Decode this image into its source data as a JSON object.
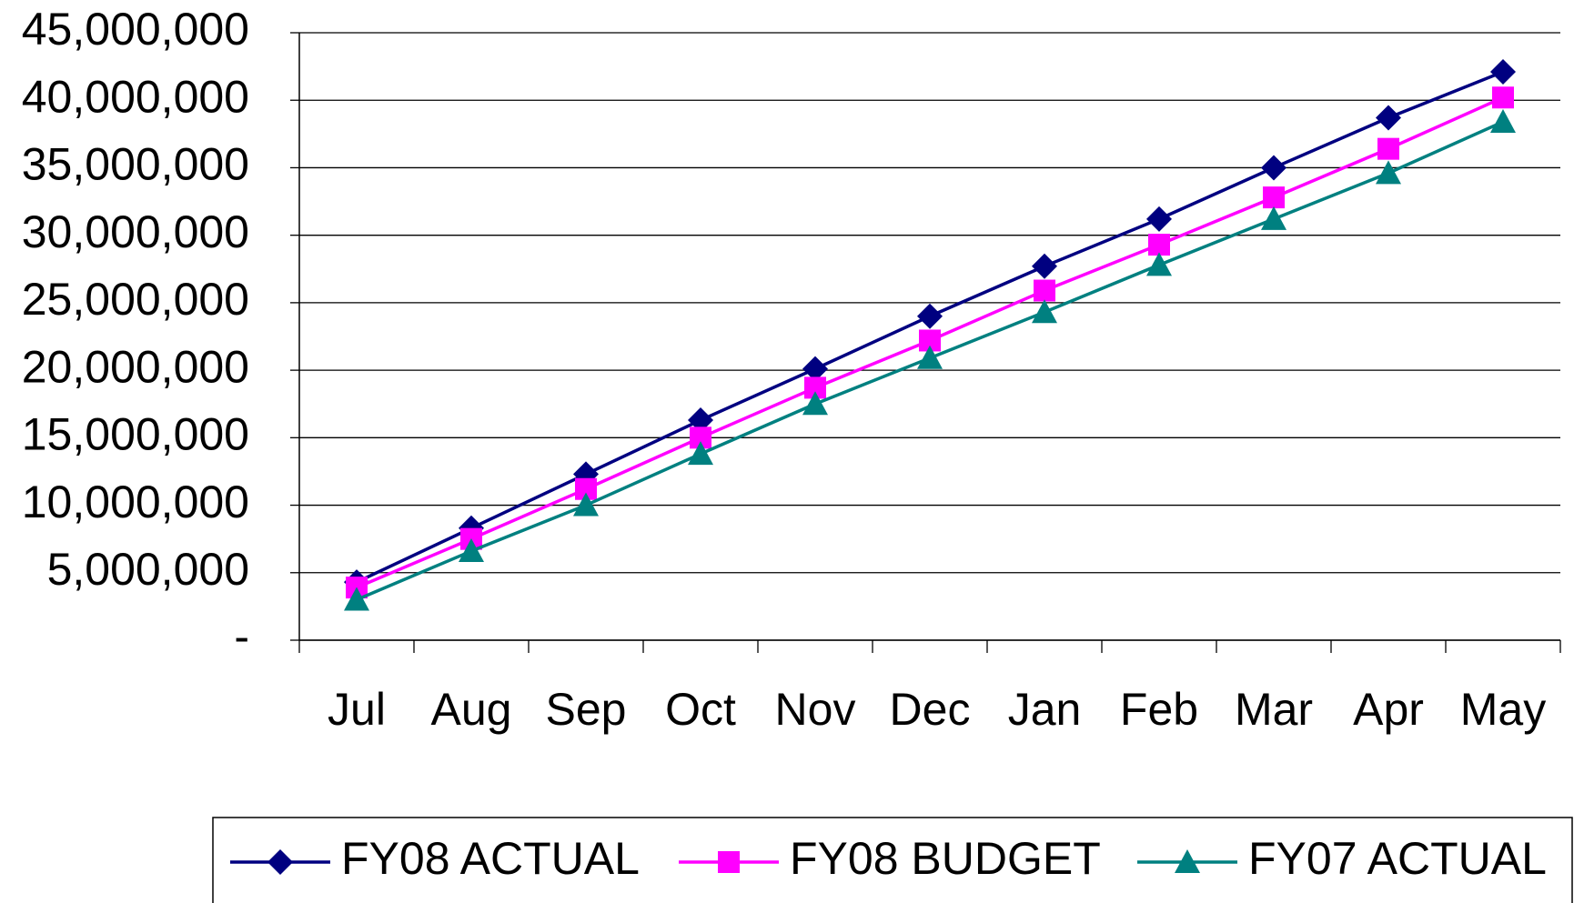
{
  "chart_data": {
    "type": "line",
    "categories": [
      "Jul",
      "Aug",
      "Sep",
      "Oct",
      "Nov",
      "Dec",
      "Jan",
      "Feb",
      "Mar",
      "Apr",
      "May"
    ],
    "series": [
      {
        "name": "FY08 ACTUAL",
        "color": "#000080",
        "marker": "diamond",
        "values": [
          4300000,
          8300000,
          12300000,
          16300000,
          20100000,
          24000000,
          27700000,
          31200000,
          35000000,
          38700000,
          42100000
        ]
      },
      {
        "name": "FY08 BUDGET",
        "color": "#ff00ff",
        "marker": "square",
        "values": [
          3900000,
          7500000,
          11200000,
          15000000,
          18700000,
          22200000,
          25900000,
          29300000,
          32800000,
          36400000,
          40200000
        ]
      },
      {
        "name": "FY07 ACTUAL",
        "color": "#008080",
        "marker": "triangle",
        "values": [
          3000000,
          6600000,
          10000000,
          13800000,
          17500000,
          20900000,
          24300000,
          27800000,
          31200000,
          34600000,
          38400000
        ]
      }
    ],
    "ylim": [
      0,
      45000000
    ],
    "yticks": [
      {
        "value": 0,
        "label": "-"
      },
      {
        "value": 5000000,
        "label": "5,000,000"
      },
      {
        "value": 10000000,
        "label": "10,000,000"
      },
      {
        "value": 15000000,
        "label": "15,000,000"
      },
      {
        "value": 20000000,
        "label": "20,000,000"
      },
      {
        "value": 25000000,
        "label": "25,000,000"
      },
      {
        "value": 30000000,
        "label": "30,000,000"
      },
      {
        "value": 35000000,
        "label": "35,000,000"
      },
      {
        "value": 40000000,
        "label": "40,000,000"
      },
      {
        "value": 45000000,
        "label": "45,000,000"
      }
    ],
    "grid": true,
    "legend": "bottom"
  }
}
